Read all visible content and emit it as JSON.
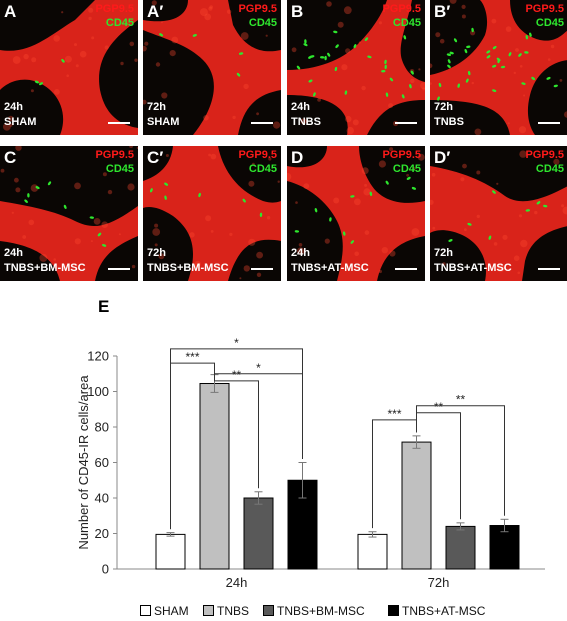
{
  "panels": [
    {
      "label": "A",
      "marker1": "PGP9.5",
      "marker2": "CD45",
      "time": "24h",
      "condition": "SHAM"
    },
    {
      "label": "A′",
      "marker1": "PGP9.5",
      "marker2": "CD45",
      "time": "72h",
      "condition": "SHAM"
    },
    {
      "label": "B",
      "marker1": "PGP9.5",
      "marker2": "CD45",
      "time": "24h",
      "condition": "TNBS"
    },
    {
      "label": "B′",
      "marker1": "PGP9.5",
      "marker2": "CD45",
      "time": "72h",
      "condition": "TNBS"
    },
    {
      "label": "C",
      "marker1": "PGP9.5",
      "marker2": "CD45",
      "time": "24h",
      "condition": "TNBS+BM-MSC"
    },
    {
      "label": "C′",
      "marker1": "PGP9.5",
      "marker2": "CD45",
      "time": "72h",
      "condition": "TNBS+BM-MSC"
    },
    {
      "label": "D",
      "marker1": "PGP9.5",
      "marker2": "CD45",
      "time": "24h",
      "condition": "TNBS+AT-MSC"
    },
    {
      "label": "D′",
      "marker1": "PGP9.5",
      "marker2": "CD45",
      "time": "72h",
      "condition": "TNBS+AT-MSC"
    }
  ],
  "colors": {
    "marker1": "#ff1a1a",
    "marker2": "#2ee62e",
    "tissue": "#d9231a",
    "background": "#0a0604"
  },
  "chart_data": {
    "type": "bar",
    "panel_label": "E",
    "categories": [
      "24h",
      "72h"
    ],
    "series": [
      {
        "name": "SHAM",
        "values": [
          19.5,
          19.5
        ],
        "errors": [
          1.0,
          1.5
        ],
        "color": "#ffffff"
      },
      {
        "name": "TNBS",
        "values": [
          104.5,
          71.5
        ],
        "errors": [
          5.0,
          3.5
        ],
        "color": "#c0c0c0"
      },
      {
        "name": "TNBS+BM-MSC",
        "values": [
          40,
          24
        ],
        "errors": [
          3.5,
          2.0
        ],
        "color": "#595959"
      },
      {
        "name": "TNBS+AT-MSC",
        "values": [
          50,
          24.5
        ],
        "errors": [
          10,
          3.5
        ],
        "color": "#000000"
      }
    ],
    "ylabel": "Number of CD45-IR cells/area",
    "xlabel": "",
    "ylim": [
      0,
      120
    ],
    "yticks": [
      0,
      20,
      40,
      60,
      80,
      100,
      120
    ],
    "grid": false,
    "legend_position": "bottom",
    "significance": [
      {
        "category": "24h",
        "from": "SHAM",
        "to": "TNBS",
        "label": "***"
      },
      {
        "category": "24h",
        "from": "TNBS",
        "to": "TNBS+BM-MSC",
        "label": "**"
      },
      {
        "category": "24h",
        "from": "TNBS",
        "to": "TNBS+AT-MSC",
        "label": "*"
      },
      {
        "category": "24h",
        "from": "SHAM",
        "to": "TNBS+AT-MSC",
        "label": "*"
      },
      {
        "category": "72h",
        "from": "SHAM",
        "to": "TNBS",
        "label": "***"
      },
      {
        "category": "72h",
        "from": "TNBS",
        "to": "TNBS+BM-MSC",
        "label": "**"
      },
      {
        "category": "72h",
        "from": "TNBS",
        "to": "TNBS+AT-MSC",
        "label": "**"
      }
    ]
  }
}
